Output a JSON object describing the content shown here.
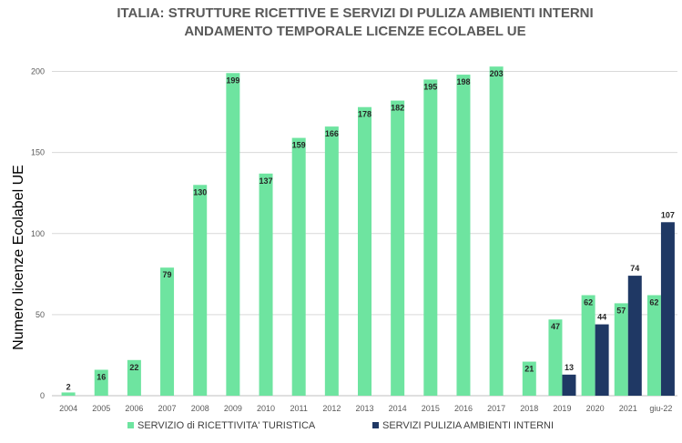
{
  "chart_data": {
    "type": "bar",
    "title_line1": "ITALIA:  STRUTTURE RICETTIVE E SERVIZI DI PULIZA AMBIENTI INTERNI",
    "title_line2": "ANDAMENTO TEMPORALE LICENZE ECOLABEL UE",
    "xlabel": "",
    "ylabel": "Numero licenze Ecolabel UE",
    "ylim": [
      0,
      210
    ],
    "yticks": [
      0,
      50,
      100,
      150,
      200
    ],
    "grid": true,
    "legend_position": "bottom",
    "categories": [
      "2004",
      "2005",
      "2006",
      "2007",
      "2008",
      "2009",
      "2010",
      "2011",
      "2012",
      "2013",
      "2014",
      "2015",
      "2016",
      "2017",
      "2018",
      "2019",
      "2020",
      "2021",
      "giu-22"
    ],
    "series": [
      {
        "name": "SERVIZIO di RICETTIVITA' TURISTICA",
        "color": "#6ee4a0",
        "values": [
          2,
          16,
          22,
          79,
          130,
          199,
          137,
          159,
          166,
          178,
          182,
          195,
          198,
          203,
          21,
          47,
          62,
          57,
          62
        ]
      },
      {
        "name": "SERVIZI PULIZIA AMBIENTI INTERNI",
        "color": "#1f3864",
        "values": [
          null,
          null,
          null,
          null,
          null,
          null,
          null,
          null,
          null,
          null,
          null,
          null,
          null,
          null,
          null,
          13,
          44,
          74,
          107
        ]
      }
    ]
  }
}
